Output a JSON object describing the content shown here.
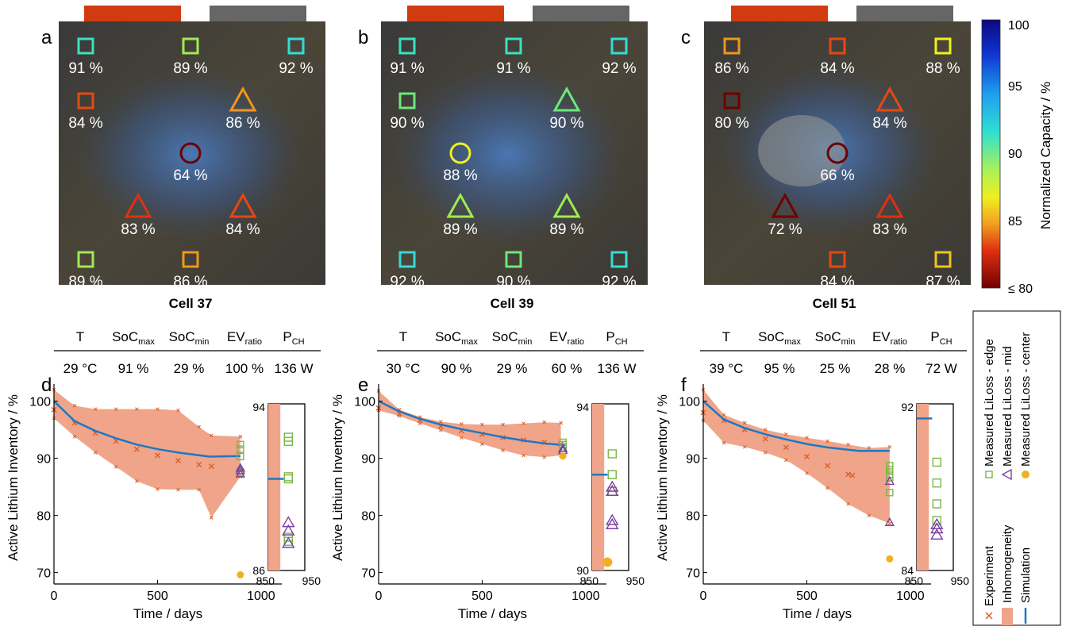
{
  "chart_data": [
    {
      "type": "heatmap",
      "panel_label": "a",
      "caption": "Cell 37",
      "markers": [
        {
          "shape": "square",
          "value": 91,
          "label": "91 %"
        },
        {
          "shape": "square",
          "value": 89,
          "label": "89 %"
        },
        {
          "shape": "square",
          "value": 92,
          "label": "92 %"
        },
        {
          "shape": "square",
          "value": 84,
          "label": "84 %"
        },
        {
          "shape": "triangle",
          "value": 86,
          "label": "86 %"
        },
        {
          "shape": "circle",
          "value": 64,
          "label": "64 %"
        },
        {
          "shape": "triangle",
          "value": 83,
          "label": "83 %"
        },
        {
          "shape": "triangle",
          "value": 84,
          "label": "84 %"
        },
        {
          "shape": "square",
          "value": 89,
          "label": "89 %"
        },
        {
          "shape": "square",
          "value": 86,
          "label": "86 %"
        }
      ]
    },
    {
      "type": "heatmap",
      "panel_label": "b",
      "caption": "Cell 39",
      "markers": [
        {
          "shape": "square",
          "value": 91,
          "label": "91 %"
        },
        {
          "shape": "square",
          "value": 91,
          "label": "91 %"
        },
        {
          "shape": "square",
          "value": 92,
          "label": "92 %"
        },
        {
          "shape": "square",
          "value": 90,
          "label": "90 %"
        },
        {
          "shape": "triangle",
          "value": 90,
          "label": "90 %"
        },
        {
          "shape": "circle",
          "value": 88,
          "label": "88 %"
        },
        {
          "shape": "triangle",
          "value": 89,
          "label": "89 %"
        },
        {
          "shape": "triangle",
          "value": 89,
          "label": "89 %"
        },
        {
          "shape": "square",
          "value": 92,
          "label": "92 %"
        },
        {
          "shape": "square",
          "value": 90,
          "label": "90 %"
        },
        {
          "shape": "square",
          "value": 92,
          "label": "92 %"
        }
      ]
    },
    {
      "type": "heatmap",
      "panel_label": "c",
      "caption": "Cell 51",
      "markers": [
        {
          "shape": "square",
          "value": 86,
          "label": "86 %"
        },
        {
          "shape": "square",
          "value": 84,
          "label": "84 %"
        },
        {
          "shape": "square",
          "value": 88,
          "label": "88 %"
        },
        {
          "shape": "square",
          "value": 80,
          "label": "80 %"
        },
        {
          "shape": "triangle",
          "value": 84,
          "label": "84 %"
        },
        {
          "shape": "circle",
          "value": 66,
          "label": "66 %"
        },
        {
          "shape": "triangle",
          "value": 72,
          "label": "72 %"
        },
        {
          "shape": "triangle",
          "value": 83,
          "label": "83 %"
        },
        {
          "shape": "square",
          "value": 84,
          "label": "84 %"
        },
        {
          "shape": "square",
          "value": 87,
          "label": "87 %"
        }
      ]
    },
    {
      "type": "line",
      "panel_label": "d",
      "conditions": {
        "T": "29 °C",
        "SoC_max": "91 %",
        "SoC_min": "29 %",
        "EV_ratio": "100 %",
        "P_CH": "136 W"
      },
      "xlabel": "Time  /  days",
      "ylabel": "Active Lithium Inventory  /  %",
      "xlim": [
        0,
        1100
      ],
      "ylim": [
        68,
        103
      ],
      "xticks": [
        0,
        500,
        1000
      ],
      "yticks": [
        70,
        80,
        90,
        100
      ],
      "experiment": {
        "x": [
          0,
          100,
          200,
          300,
          400,
          500,
          600,
          700,
          760
        ],
        "y": [
          98.5,
          96.2,
          94.4,
          93.0,
          91.6,
          90.5,
          89.6,
          88.9,
          88.6
        ]
      },
      "inhomogeneity": {
        "x": [
          0,
          100,
          200,
          300,
          400,
          500,
          600,
          700,
          760,
          900
        ],
        "upper": [
          102,
          99.2,
          98.6,
          98.6,
          98.6,
          98.6,
          98.4,
          95.5,
          94,
          93.8
        ],
        "lower": [
          97,
          93.8,
          91,
          88.5,
          86,
          84.6,
          84.5,
          84.5,
          79.6,
          86.8
        ]
      },
      "simulation": {
        "x": [
          0,
          100,
          200,
          300,
          400,
          500,
          600,
          750,
          900
        ],
        "y": [
          100,
          96.5,
          94.8,
          93.5,
          92.4,
          91.6,
          91,
          90.3,
          90.4
        ]
      },
      "measured_edge": [
        92.4,
        91.6,
        90.3,
        87.6,
        87.4
      ],
      "measured_mid": [
        88.3,
        87.9,
        87.3
      ],
      "measured_center": [
        69.6
      ],
      "measured_x": 900,
      "inset": {
        "xlim": [
          850,
          950
        ],
        "ylim": [
          86,
          94
        ],
        "xticks": [
          850,
          950
        ],
        "yticks": [
          86,
          94
        ],
        "simulation_y": 90.4,
        "edge": [
          92.4,
          92.2,
          90.5,
          90.4,
          87.6,
          87.4
        ],
        "mid": [
          88.3,
          87.9,
          87.3
        ]
      }
    },
    {
      "type": "line",
      "panel_label": "e",
      "conditions": {
        "T": "30 °C",
        "SoC_max": "90 %",
        "SoC_min": "29 %",
        "EV_ratio": "60 %",
        "P_CH": "136 W"
      },
      "xlabel": "Time  /  days",
      "ylabel": "Active Lithium Inventory  /  %",
      "xlim": [
        0,
        1100
      ],
      "ylim": [
        68,
        103
      ],
      "xticks": [
        0,
        500,
        1000
      ],
      "yticks": [
        70,
        80,
        90,
        100
      ],
      "experiment": {
        "x": [
          0,
          100,
          200,
          300,
          400,
          500,
          600,
          700,
          800,
          880
        ],
        "y": [
          98.8,
          97.8,
          96.6,
          95.6,
          94.8,
          94.2,
          93.6,
          93.2,
          92.8,
          92.5
        ]
      },
      "inhomogeneity": {
        "x": [
          0,
          100,
          200,
          300,
          400,
          500,
          600,
          700,
          800,
          880
        ],
        "upper": [
          101.8,
          98.5,
          97.2,
          96.4,
          96,
          95.9,
          95.9,
          96.1,
          96.3,
          96.2
        ],
        "lower": [
          98.4,
          97.4,
          96.1,
          94.9,
          93.6,
          92.5,
          91.4,
          90.5,
          90.2,
          90.5
        ]
      },
      "simulation": {
        "x": [
          0,
          100,
          200,
          300,
          400,
          500,
          600,
          700,
          800,
          900
        ],
        "y": [
          100,
          98.2,
          96.9,
          95.9,
          95.1,
          94.4,
          93.7,
          93.1,
          92.6,
          92.3
        ]
      },
      "measured_edge": [
        92.8,
        92.4,
        92
      ],
      "measured_mid": [
        91.7,
        91.4
      ],
      "measured_center": [
        90.4
      ],
      "measured_x": 890,
      "inset": {
        "xlim": [
          850,
          950
        ],
        "ylim": [
          90,
          94
        ],
        "xticks": [
          850,
          950
        ],
        "yticks": [
          90,
          94
        ],
        "simulation_y": 92.3,
        "edge": [
          92.8,
          92.3,
          92.3,
          91.9
        ],
        "mid": [
          92.0,
          91.9,
          91.2,
          91.1
        ],
        "center": [
          90.2
        ]
      }
    },
    {
      "type": "line",
      "panel_label": "f",
      "conditions": {
        "T": "39 °C",
        "SoC_max": "95 %",
        "SoC_min": "25 %",
        "EV_ratio": "28 %",
        "P_CH": "72 W"
      },
      "xlabel": "Time  /  days",
      "ylabel": "Active Lithium Inventory  /  %",
      "xlim": [
        0,
        1100
      ],
      "ylim": [
        68,
        103
      ],
      "xticks": [
        0,
        500,
        1000
      ],
      "yticks": [
        70,
        80,
        90,
        100
      ],
      "experiment": {
        "x": [
          0,
          100,
          200,
          300,
          400,
          500,
          600,
          700,
          720
        ],
        "y": [
          98,
          96.6,
          95,
          93.4,
          91.9,
          90.3,
          88.7,
          87.2,
          87
        ]
      },
      "inhomogeneity": {
        "x": [
          0,
          100,
          200,
          300,
          400,
          500,
          600,
          700,
          800,
          900
        ],
        "upper": [
          102,
          97.6,
          96.2,
          95,
          94.2,
          93.6,
          93,
          92.4,
          91.8,
          92
        ],
        "lower": [
          96.6,
          92.7,
          92,
          91,
          89.7,
          87.4,
          84.8,
          82,
          80,
          78.6
        ]
      },
      "simulation": {
        "x": [
          0,
          100,
          200,
          300,
          400,
          500,
          600,
          750,
          900
        ],
        "y": [
          100,
          96.8,
          95.3,
          94.2,
          93.3,
          92.5,
          91.9,
          91.3,
          91.3
        ]
      },
      "measured_edge": [
        88.7,
        88,
        87.2,
        86.6,
        84
      ],
      "measured_mid": [
        86,
        78.8
      ],
      "measured_center": [
        72.4
      ],
      "measured_x": 900,
      "inset": {
        "xlim": [
          850,
          950
        ],
        "ylim": [
          84,
          92
        ],
        "xticks": [
          850,
          950
        ],
        "yticks": [
          84,
          92
        ],
        "simulation_y": 91.3,
        "edge": [
          89.2,
          88.2,
          87.2,
          86.4
        ],
        "mid": [
          86.2,
          86,
          85.7
        ]
      }
    }
  ],
  "colorbar": {
    "label": "Normalized Capacity / %",
    "ticks": [
      "100",
      "95",
      "90",
      "85",
      "≤ 80"
    ],
    "range": [
      80,
      100
    ]
  },
  "legend": {
    "entries": [
      "Experiment",
      "Inhomogeneity",
      "Simulation",
      "Measured LiLoss - edge",
      "Measured LiLoss - mid",
      "Measured LiLoss - center"
    ]
  },
  "colors": {
    "simulation": "#1f77c4",
    "experiment": "#d95f2b",
    "band": "#f0a58a",
    "edge": "#7ab648",
    "mid": "#7b3fa0",
    "center": "#f0b020",
    "tab_red": "#d13b10",
    "tab_gray": "#666666"
  }
}
